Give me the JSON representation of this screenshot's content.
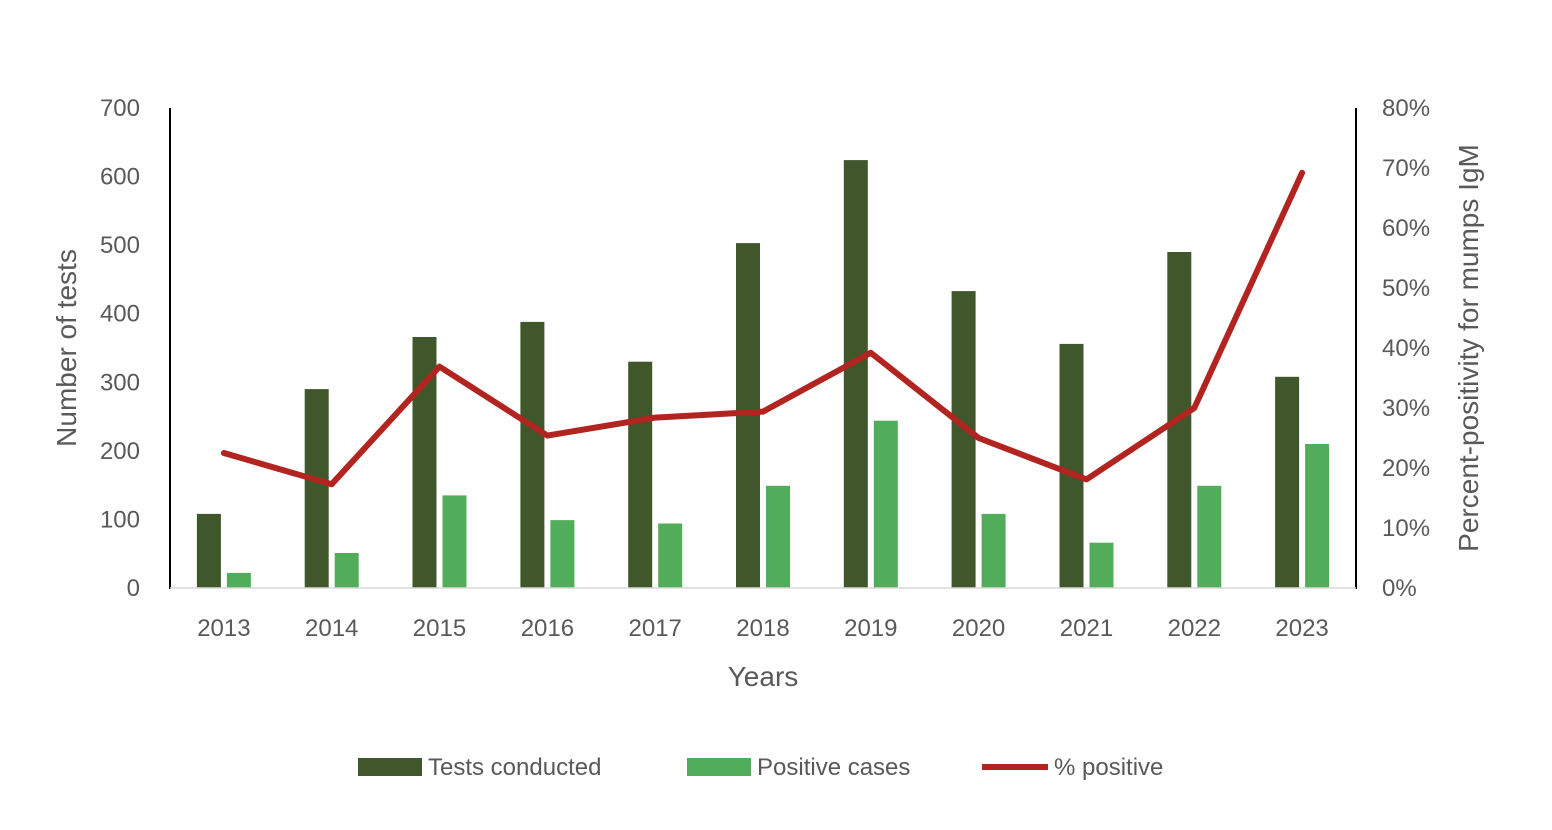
{
  "chart_data": {
    "type": "bar",
    "categories": [
      "2013",
      "2014",
      "2015",
      "2016",
      "2017",
      "2018",
      "2019",
      "2020",
      "2021",
      "2022",
      "2023"
    ],
    "series": [
      {
        "name": "Tests conducted",
        "kind": "bar",
        "axis": "left",
        "color": "#3f572a",
        "values": [
          108,
          290,
          366,
          388,
          330,
          503,
          624,
          433,
          356,
          490,
          308
        ]
      },
      {
        "name": "Positive cases",
        "kind": "bar",
        "axis": "left",
        "color": "#52ad5a",
        "values": [
          22,
          51,
          135,
          99,
          94,
          149,
          244,
          108,
          66,
          149,
          210
        ]
      },
      {
        "name": "% positive",
        "kind": "line",
        "axis": "right",
        "color": "#b22420",
        "values": [
          22.5,
          17.3,
          36.9,
          25.4,
          28.4,
          29.4,
          39.2,
          25.0,
          18.1,
          30.0,
          69.2
        ]
      }
    ],
    "title": "",
    "xlabel": "Years",
    "ylabel": "Number of tests",
    "y2label": "Percent-positivity for mumps IgM",
    "ylim": [
      0,
      700
    ],
    "yticks": [
      "0",
      "100",
      "200",
      "300",
      "400",
      "500",
      "600",
      "700"
    ],
    "y2lim": [
      0,
      80
    ],
    "y2ticks": [
      "0%",
      "10%",
      "20%",
      "30%",
      "40%",
      "50%",
      "60%",
      "70%",
      "80%"
    ],
    "grid": false,
    "legend_position": "bottom"
  }
}
